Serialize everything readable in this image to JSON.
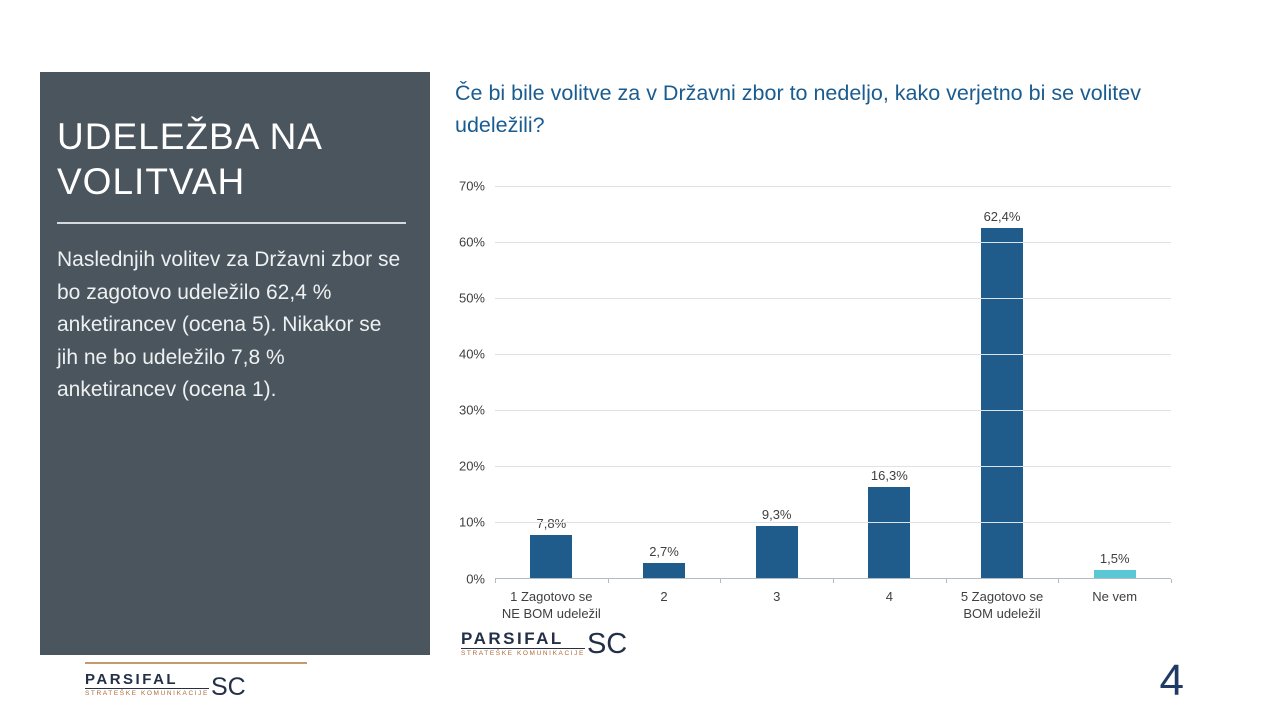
{
  "slide": {
    "page_number": "4"
  },
  "sidebar": {
    "title": "UDELEŽBA NA VOLITVAH",
    "body": "Naslednjih volitev za Državni zbor se bo zagotovo udeležilo 62,4 % anketirancev (ocena 5). Nikakor se jih ne bo udeležilo 7,8 % anketirancev (ocena 1)."
  },
  "main": {
    "question": "Če bi bile volitve za v Državni zbor to nedeljo, kako verjetno bi se volitev udeležili?"
  },
  "chart_data": {
    "type": "bar",
    "title": "",
    "xlabel": "",
    "ylabel": "",
    "categories": [
      "1 Zagotovo se NE BOM udeležil",
      "2",
      "3",
      "4",
      "5 Zagotovo se BOM udeležil",
      "Ne vem"
    ],
    "values": [
      7.8,
      2.7,
      9.3,
      16.3,
      62.4,
      1.5
    ],
    "value_labels": [
      "7,8%",
      "2,7%",
      "9,3%",
      "16,3%",
      "62,4%",
      "1,5%"
    ],
    "bar_colors": [
      "#1F5C8B",
      "#1F5C8B",
      "#1F5C8B",
      "#1F5C8B",
      "#1F5C8B",
      "#5BC6D4"
    ],
    "ylim": [
      0,
      70
    ],
    "ytick_step": 10,
    "ytick_labels": [
      "0%",
      "10%",
      "20%",
      "30%",
      "40%",
      "50%",
      "60%",
      "70%"
    ],
    "grid": true,
    "legend": "none"
  },
  "logo": {
    "word": "PARSIFAL",
    "subtitle": "STRATEŠKE KOMUNIKACIJE",
    "suffix": "SC"
  },
  "colors": {
    "panel_bg": "#4B555D",
    "heading_blue": "#1A5C90",
    "bar_blue": "#1F5C8B",
    "bar_teal": "#5BC6D4",
    "accent_line": "#C79A6B",
    "page_number_navy": "#203A66"
  }
}
